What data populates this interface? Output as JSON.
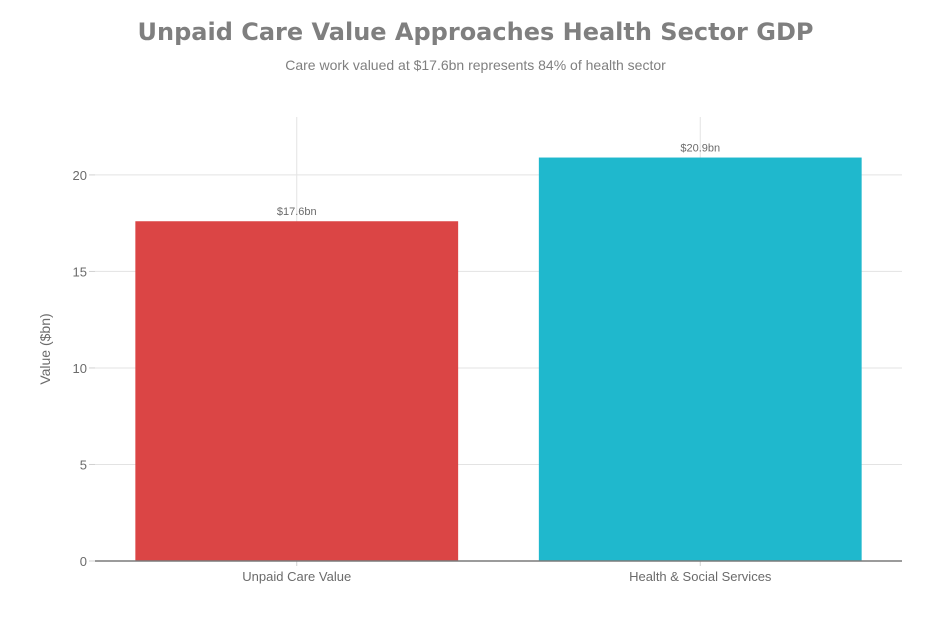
{
  "chart_data": {
    "type": "bar",
    "title": "Unpaid Care Value Approaches Health Sector GDP",
    "subtitle": "Care work valued at $17.6bn represents 84% of health sector",
    "categories": [
      "Unpaid Care Value",
      "Health & Social Services"
    ],
    "values": [
      17.6,
      20.9
    ],
    "data_labels": [
      "$17.6bn",
      "$20.9bn"
    ],
    "colors": [
      "#DB4545",
      "#1FB8CD"
    ],
    "xlabel": "",
    "ylabel": "Value ($bn)",
    "ylim": [
      0,
      23
    ],
    "yticks": [
      0,
      5,
      10,
      15,
      20
    ],
    "grid": true,
    "legend": "none"
  }
}
